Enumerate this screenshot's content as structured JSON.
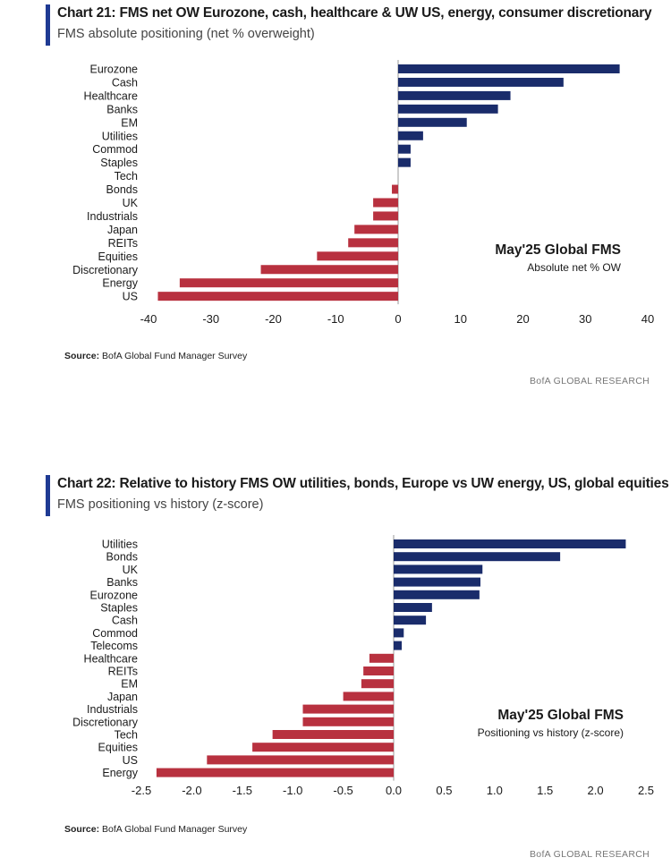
{
  "colors": {
    "positive": "#1a2c6b",
    "negative": "#b8313f",
    "accent": "#1f3a93"
  },
  "chart_data": [
    {
      "type": "bar",
      "orientation": "horizontal",
      "title": "Chart 21: FMS net OW Eurozone, cash, healthcare & UW US, energy, consumer discretionary",
      "subtitle": "FMS absolute positioning (net % overweight)",
      "categories": [
        "Eurozone",
        "Cash",
        "Healthcare",
        "Banks",
        "EM",
        "Utilities",
        "Commod",
        "Staples",
        "Tech",
        "Bonds",
        "UK",
        "Industrials",
        "Japan",
        "REITs",
        "Equities",
        "Discretionary",
        "Energy",
        "US"
      ],
      "values": [
        35.5,
        26.5,
        18,
        16,
        11,
        4,
        2,
        2,
        0,
        -1,
        -4,
        -4,
        -7,
        -8,
        -13,
        -22,
        -35,
        -38.5
      ],
      "xlim": [
        -40,
        40
      ],
      "xticks": [
        -40,
        -30,
        -20,
        -10,
        0,
        10,
        20,
        30,
        40
      ],
      "xtick_labels": [
        "-40",
        "-30",
        "-20",
        "-10",
        "0",
        "10",
        "20",
        "30",
        "40"
      ],
      "annotation_title": "May'25 Global FMS",
      "annotation_sub": "Absolute net % OW",
      "source_label": "Source:",
      "source_text": "BofA Global Fund Manager Survey",
      "footer": "BofA GLOBAL RESEARCH"
    },
    {
      "type": "bar",
      "orientation": "horizontal",
      "title": "Chart 22: Relative to history FMS OW utilities, bonds, Europe vs UW energy, US, global equities",
      "subtitle": "FMS positioning vs history (z-score)",
      "categories": [
        "Utilities",
        "Bonds",
        "UK",
        "Banks",
        "Eurozone",
        "Staples",
        "Cash",
        "Commod",
        "Telecoms",
        "Healthcare",
        "REITs",
        "EM",
        "Japan",
        "Industrials",
        "Discretionary",
        "Tech",
        "Equities",
        "US",
        "Energy"
      ],
      "values": [
        2.3,
        1.65,
        0.88,
        0.86,
        0.85,
        0.38,
        0.32,
        0.1,
        0.08,
        -0.24,
        -0.3,
        -0.32,
        -0.5,
        -0.9,
        -0.9,
        -1.2,
        -1.4,
        -1.85,
        -2.35
      ],
      "xlim": [
        -2.5,
        2.5
      ],
      "xticks": [
        -2.5,
        -2.0,
        -1.5,
        -1.0,
        -0.5,
        0.0,
        0.5,
        1.0,
        1.5,
        2.0,
        2.5
      ],
      "xtick_labels": [
        "-2.5",
        "-2.0",
        "-1.5",
        "-1.0",
        "-0.5",
        "0.0",
        "0.5",
        "1.0",
        "1.5",
        "2.0",
        "2.5"
      ],
      "annotation_title": "May'25 Global FMS",
      "annotation_sub": "Positioning vs history (z-score)",
      "source_label": "Source:",
      "source_text": "BofA Global Fund Manager Survey",
      "footer": "BofA GLOBAL RESEARCH"
    }
  ]
}
